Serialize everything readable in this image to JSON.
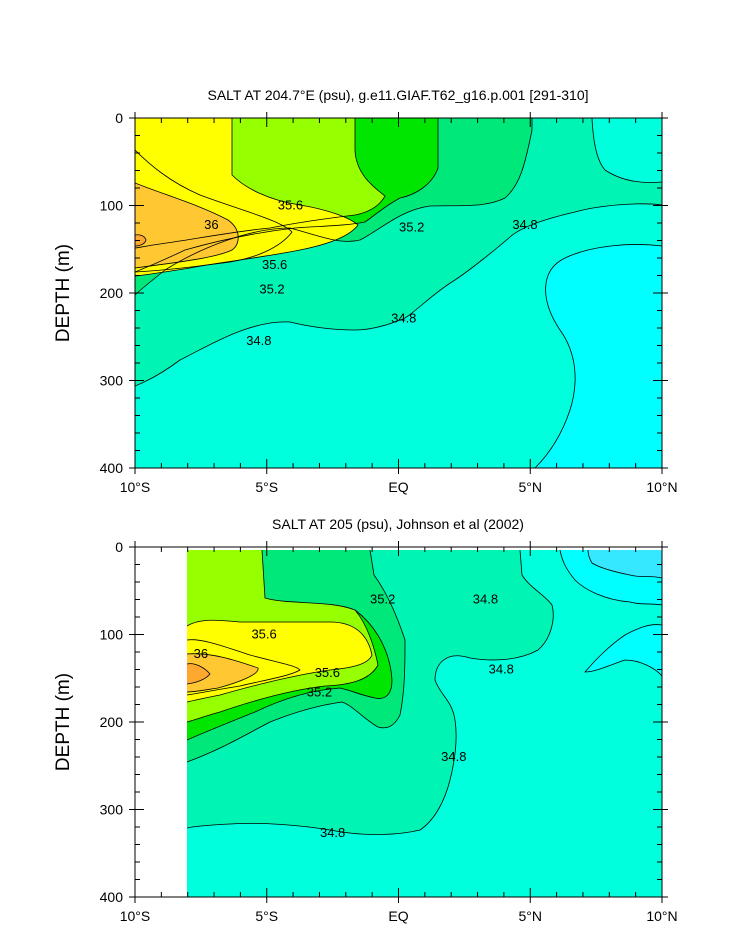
{
  "chart_data": [
    {
      "type": "contour",
      "title": "SALT AT 204.7°E (psu), g.e11.GIAF.T62_g16.p.001 [291-310]",
      "ylabel": "DEPTH (m)",
      "xlim": [
        -10,
        10
      ],
      "ylim": [
        400,
        0
      ],
      "x_ticks": [
        -10,
        -5,
        0,
        5,
        10
      ],
      "x_tick_labels": [
        "10°S",
        "5°S",
        "EQ",
        "5°N",
        "10°N"
      ],
      "y_ticks": [
        0,
        100,
        200,
        300,
        400
      ],
      "y_tick_labels": [
        "0",
        "100",
        "200",
        "300",
        "400"
      ],
      "contour_levels": [
        34.6,
        34.8,
        35.0,
        35.2,
        35.4,
        35.6,
        35.8,
        36.0,
        36.2
      ],
      "contour_labels": [
        {
          "text": "35.6",
          "x": -4.1,
          "y": 100
        },
        {
          "text": "36",
          "x": -7.1,
          "y": 122
        },
        {
          "text": "35.6",
          "x": -4.7,
          "y": 168
        },
        {
          "text": "35.2",
          "x": -4.8,
          "y": 196
        },
        {
          "text": "35.2",
          "x": 0.5,
          "y": 125
        },
        {
          "text": "34.8",
          "x": 4.8,
          "y": 122
        },
        {
          "text": "34.8",
          "x": 0.2,
          "y": 229
        },
        {
          "text": "34.8",
          "x": -5.3,
          "y": 255
        }
      ]
    },
    {
      "type": "contour",
      "title": "SALT AT 205 (psu), Johnson et al (2002)",
      "ylabel": "DEPTH (m)",
      "xlim": [
        -10,
        10
      ],
      "ylim": [
        400,
        0
      ],
      "x_ticks": [
        -10,
        -5,
        0,
        5,
        10
      ],
      "x_tick_labels": [
        "10°S",
        "5°S",
        "EQ",
        "5°N",
        "10°N"
      ],
      "y_ticks": [
        0,
        100,
        200,
        300,
        400
      ],
      "y_tick_labels": [
        "0",
        "100",
        "200",
        "300",
        "400"
      ],
      "data_xlim": [
        -8,
        10
      ],
      "contour_levels": [
        34.4,
        34.6,
        34.8,
        35.0,
        35.2,
        35.4,
        35.6,
        35.8,
        36.0,
        36.2
      ],
      "contour_labels": [
        {
          "text": "35.2",
          "x": -0.6,
          "y": 60
        },
        {
          "text": "34.8",
          "x": 3.3,
          "y": 60
        },
        {
          "text": "35.6",
          "x": -5.1,
          "y": 100
        },
        {
          "text": "36",
          "x": -7.5,
          "y": 122
        },
        {
          "text": "35.6",
          "x": -2.7,
          "y": 144
        },
        {
          "text": "35.2",
          "x": -3.0,
          "y": 166
        },
        {
          "text": "34.8",
          "x": 3.9,
          "y": 140
        },
        {
          "text": "34.8",
          "x": 2.1,
          "y": 240
        },
        {
          "text": "34.8",
          "x": -2.5,
          "y": 327
        }
      ]
    }
  ],
  "colors": {
    "s36_2": "#ffa830",
    "s36_0": "#ffc832",
    "s35_8": "#ffff00",
    "s35_6": "#ffff00",
    "s35_4": "#96ff00",
    "s35_2": "#00e600",
    "s35_0": "#00e87a",
    "s34_8": "#00f5b4",
    "s34_6": "#00ffdc",
    "s34_4": "#00ffff",
    "s34_2": "#36e8ff"
  }
}
